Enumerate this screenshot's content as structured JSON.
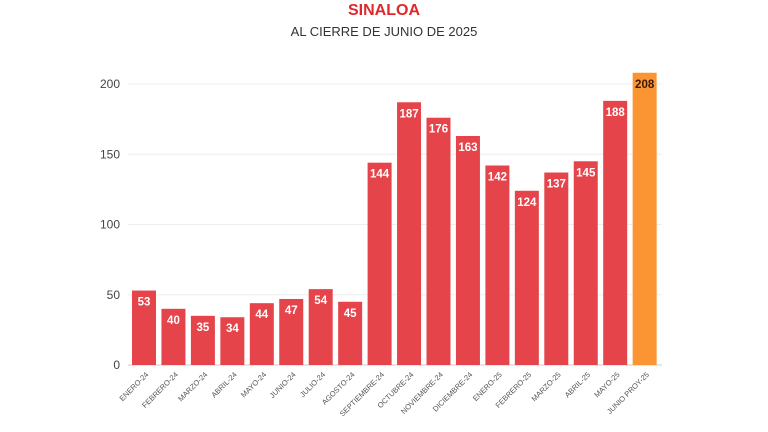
{
  "chart_data": {
    "type": "bar",
    "title": "SINALOA",
    "subtitle": "AL CIERRE DE JUNIO DE 2025",
    "xlabel": "",
    "ylabel": "",
    "ylim": [
      0,
      200
    ],
    "yticks": [
      0,
      50,
      100,
      150,
      200
    ],
    "grid": true,
    "categories": [
      "ENERO-24",
      "FEBRERO-24",
      "MARZO-24",
      "ABRIL-24",
      "MAYO-24",
      "JUNIO-24",
      "JULIO-24",
      "AGOSTO-24",
      "SEPTIEMBRE-24",
      "OCTUBRE-24",
      "NOVIEMBRE-24",
      "DICIEMBRE-24",
      "ENERO-25",
      "FEBRERO-25",
      "MARZO-25",
      "ABRIL-25",
      "MAYO-25",
      "JUNIO PROY-25"
    ],
    "values": [
      53,
      40,
      35,
      34,
      44,
      47,
      54,
      45,
      144,
      187,
      176,
      163,
      142,
      124,
      137,
      145,
      188,
      208
    ],
    "colors": {
      "actual": "#e5444a",
      "projected": "#fb9533",
      "label_actual": "#ffffff",
      "label_projected": "#3a1a00"
    }
  }
}
